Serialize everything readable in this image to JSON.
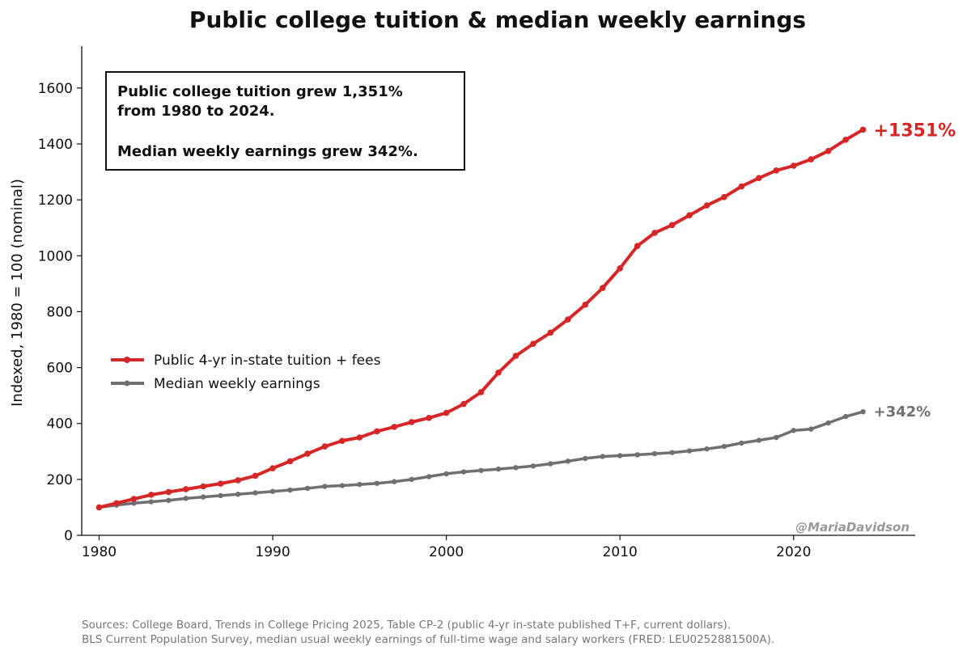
{
  "colors": {
    "tuition": "#d62728",
    "earnings": "#707070",
    "axis": "#111111",
    "watermark": "#999999",
    "source": "#777777"
  },
  "source": {
    "line1": "Sources: College Board, Trends in College Pricing 2025, Table CP-2 (public 4-yr in-state published T+F, current dollars).",
    "line2": "BLS Current Population Survey, median usual weekly earnings of full-time wage and salary workers (FRED: LEU0252881500A)."
  },
  "watermark": "@MariaDavidson",
  "chart_data": {
    "type": "line",
    "title": "Public college tuition & median weekly earnings",
    "xlabel": "",
    "ylabel": "Indexed, 1980 = 100 (nominal)",
    "xlim": [
      1979,
      2027
    ],
    "ylim": [
      0,
      1750
    ],
    "xticks": [
      1980,
      1990,
      2000,
      2010,
      2020
    ],
    "yticks": [
      0,
      200,
      400,
      600,
      800,
      1000,
      1200,
      1400,
      1600
    ],
    "grid": false,
    "legend_position": "center-left",
    "x": [
      1980,
      1981,
      1982,
      1983,
      1984,
      1985,
      1986,
      1987,
      1988,
      1989,
      1990,
      1991,
      1992,
      1993,
      1994,
      1995,
      1996,
      1997,
      1998,
      1999,
      2000,
      2001,
      2002,
      2003,
      2004,
      2005,
      2006,
      2007,
      2008,
      2009,
      2010,
      2011,
      2012,
      2013,
      2014,
      2015,
      2016,
      2017,
      2018,
      2019,
      2020,
      2021,
      2022,
      2023,
      2024
    ],
    "series": [
      {
        "name": "Public 4-yr in-state tuition + fees",
        "color": "#d62728",
        "end_label": "+1351%",
        "values": [
          100,
          115,
          130,
          145,
          155,
          165,
          175,
          185,
          197,
          213,
          240,
          265,
          292,
          318,
          338,
          350,
          372,
          388,
          405,
          420,
          438,
          470,
          512,
          582,
          642,
          685,
          725,
          772,
          825,
          885,
          955,
          1035,
          1082,
          1110,
          1145,
          1180,
          1210,
          1248,
          1278,
          1305,
          1322,
          1345,
          1375,
          1415,
          1451
        ]
      },
      {
        "name": "Median weekly earnings",
        "color": "#707070",
        "end_label": "+342%",
        "values": [
          100,
          108,
          115,
          120,
          125,
          132,
          137,
          142,
          147,
          152,
          157,
          162,
          168,
          175,
          178,
          182,
          186,
          192,
          200,
          210,
          220,
          227,
          232,
          237,
          242,
          248,
          256,
          265,
          275,
          282,
          285,
          288,
          292,
          296,
          302,
          309,
          318,
          330,
          340,
          350,
          375,
          380,
          402,
          425,
          442
        ]
      }
    ],
    "annotations": [
      "Public college tuition grew 1,351%",
      "from 1980 to 2024.",
      "Median weekly earnings grew 342%."
    ]
  }
}
